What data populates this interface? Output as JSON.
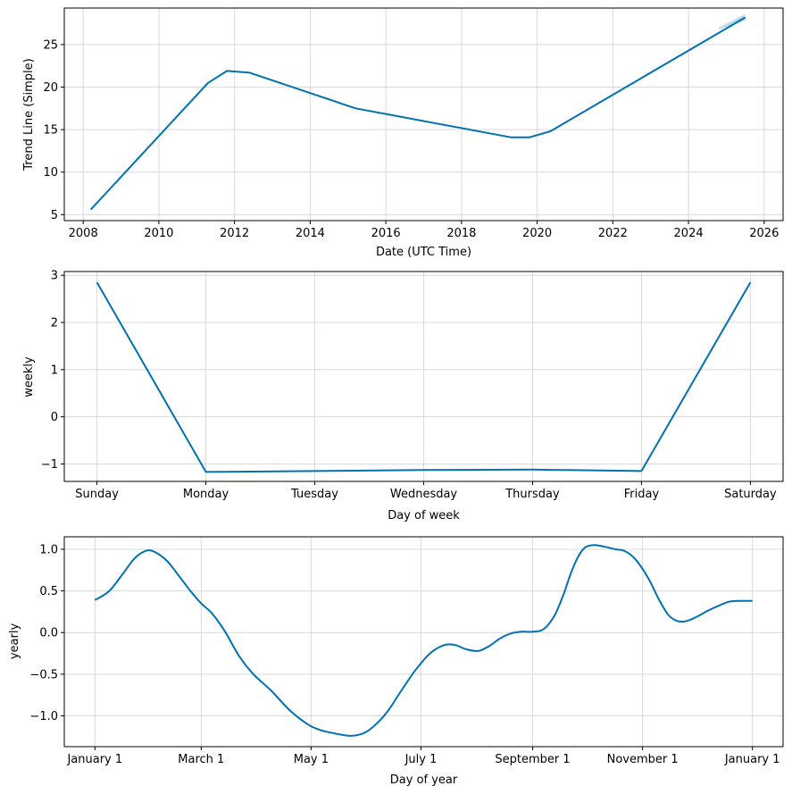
{
  "chart_data": [
    {
      "type": "line",
      "xlabel": "Date (UTC Time)",
      "ylabel": "Trend Line (Simple)",
      "x_ticks": [
        2008,
        2010,
        2012,
        2014,
        2016,
        2018,
        2020,
        2022,
        2024,
        2026
      ],
      "y_ticks": [
        5,
        10,
        15,
        20,
        25
      ],
      "xlim": [
        2007.5,
        2026.5
      ],
      "ylim": [
        4.3,
        29.3
      ],
      "grid": true,
      "series": [
        {
          "x": [
            2008.2,
            2011.3,
            2011.8,
            2012.4,
            2015.2,
            2019.3,
            2019.8,
            2020.35,
            2025.5
          ],
          "y": [
            5.6,
            20.5,
            21.9,
            21.7,
            17.5,
            14.1,
            14.1,
            14.8,
            28.2
          ]
        }
      ],
      "uncertainty": {
        "x": [
          2024.8,
          2025.5
        ],
        "lower": [
          26.8,
          27.8
        ],
        "upper": [
          27.0,
          28.6
        ]
      }
    },
    {
      "type": "line",
      "xlabel": "Day of week",
      "ylabel": "weekly",
      "categories": [
        "Sunday",
        "Monday",
        "Tuesday",
        "Wednesday",
        "Thursday",
        "Friday",
        "Saturday"
      ],
      "y_ticks": [
        -1,
        0,
        1,
        2,
        3
      ],
      "y_tick_labels": [
        "−1",
        "0",
        "1",
        "2",
        "3"
      ],
      "ylim": [
        -1.37,
        3.08
      ],
      "grid": true,
      "series": [
        {
          "values": [
            2.85,
            -1.17,
            -1.15,
            -1.13,
            -1.12,
            -1.15,
            2.85
          ]
        }
      ]
    },
    {
      "type": "line",
      "xlabel": "Day of year",
      "ylabel": "yearly",
      "x_ticks": [
        0,
        59,
        120,
        181,
        243,
        304,
        365
      ],
      "x_tick_labels": [
        "January 1",
        "March 1",
        "May 1",
        "July 1",
        "September 1",
        "November 1",
        "January 1"
      ],
      "xlim": [
        -17,
        382
      ],
      "y_ticks": [
        -1.0,
        -0.5,
        0.0,
        0.5,
        1.0
      ],
      "y_tick_labels": [
        "−1.0",
        "−0.5",
        "0.0",
        "0.5",
        "1.0"
      ],
      "ylim": [
        -1.37,
        1.15
      ],
      "grid": true,
      "series": [
        {
          "x": [
            0,
            8,
            16,
            22,
            28,
            33,
            40,
            47,
            53,
            59,
            65,
            72,
            80,
            88,
            98,
            108,
            118,
            125,
            133,
            142,
            150,
            157,
            163,
            170,
            178,
            186,
            194,
            200,
            206,
            213,
            219,
            225,
            231,
            237,
            243,
            249,
            255,
            260,
            264,
            268,
            272,
            277,
            283,
            289,
            294,
            300,
            307,
            313,
            318,
            322,
            326,
            330,
            335,
            340,
            346,
            352,
            358,
            365
          ],
          "y": [
            0.39,
            0.5,
            0.72,
            0.89,
            0.98,
            0.97,
            0.86,
            0.67,
            0.5,
            0.35,
            0.23,
            0.02,
            -0.28,
            -0.5,
            -0.7,
            -0.93,
            -1.1,
            -1.17,
            -1.21,
            -1.24,
            -1.2,
            -1.08,
            -0.93,
            -0.7,
            -0.45,
            -0.25,
            -0.15,
            -0.15,
            -0.2,
            -0.22,
            -0.16,
            -0.07,
            -0.01,
            0.01,
            0.01,
            0.04,
            0.2,
            0.45,
            0.7,
            0.9,
            1.02,
            1.05,
            1.03,
            1.0,
            0.98,
            0.88,
            0.66,
            0.4,
            0.22,
            0.15,
            0.13,
            0.15,
            0.2,
            0.26,
            0.32,
            0.37,
            0.38,
            0.38
          ]
        }
      ]
    }
  ]
}
